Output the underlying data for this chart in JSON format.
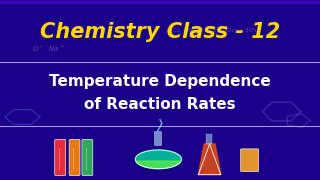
{
  "title_line1": "Chemistry Class - 12",
  "title_line2": "Temperature Dependence",
  "title_line3": "of Reaction Rates",
  "title_color": "#FFD700",
  "subtitle_color": "#FFFFFF",
  "bg_color_top": "#1a0088",
  "bg_color_bot": "#3300bb",
  "separator_color": "#FFFFFF",
  "title_fontsize": 15,
  "subtitle_fontsize": 11,
  "fig_width": 3.2,
  "fig_height": 1.8,
  "dpi": 100
}
